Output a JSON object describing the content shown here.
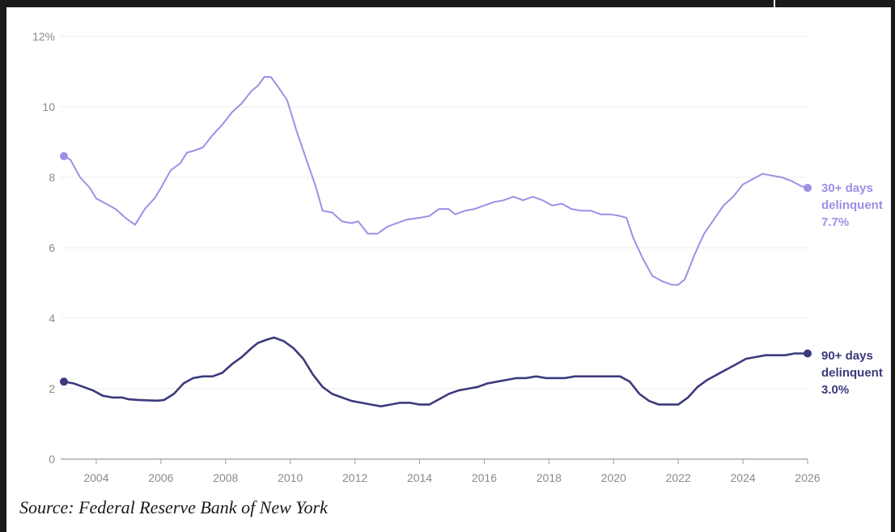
{
  "source": "Source: Federal Reserve Bank of New York",
  "chart_data": {
    "type": "line",
    "title": "",
    "xlabel": "",
    "ylabel": "",
    "xlim": [
      2002.9,
      2026
    ],
    "ylim": [
      0,
      12
    ],
    "y_ticks": [
      "0",
      "2",
      "4",
      "6",
      "8",
      "10",
      "12%"
    ],
    "x_ticks": [
      "2004",
      "2006",
      "2008",
      "2010",
      "2012",
      "2014",
      "2016",
      "2018",
      "2020",
      "2022",
      "2024",
      "2026"
    ],
    "grid": "horizontal",
    "series": [
      {
        "name": "30+ days delinquent",
        "label_lines": [
          "30+ days",
          "delinquent",
          "7.7%"
        ],
        "color": "#9c90e6",
        "points": [
          [
            2003.0,
            8.6
          ],
          [
            2003.2,
            8.5
          ],
          [
            2003.5,
            8.0
          ],
          [
            2003.8,
            7.7
          ],
          [
            2004.0,
            7.4
          ],
          [
            2004.3,
            7.25
          ],
          [
            2004.6,
            7.1
          ],
          [
            2004.9,
            6.85
          ],
          [
            2005.2,
            6.65
          ],
          [
            2005.5,
            7.1
          ],
          [
            2005.8,
            7.4
          ],
          [
            2006.0,
            7.7
          ],
          [
            2006.3,
            8.2
          ],
          [
            2006.6,
            8.4
          ],
          [
            2006.8,
            8.7
          ],
          [
            2007.0,
            8.75
          ],
          [
            2007.3,
            8.85
          ],
          [
            2007.6,
            9.2
          ],
          [
            2007.9,
            9.5
          ],
          [
            2008.2,
            9.85
          ],
          [
            2008.5,
            10.1
          ],
          [
            2008.8,
            10.45
          ],
          [
            2009.0,
            10.6
          ],
          [
            2009.2,
            10.85
          ],
          [
            2009.4,
            10.85
          ],
          [
            2009.6,
            10.6
          ],
          [
            2009.9,
            10.2
          ],
          [
            2010.2,
            9.3
          ],
          [
            2010.5,
            8.5
          ],
          [
            2010.8,
            7.7
          ],
          [
            2011.0,
            7.05
          ],
          [
            2011.3,
            7.0
          ],
          [
            2011.6,
            6.75
          ],
          [
            2011.9,
            6.7
          ],
          [
            2012.1,
            6.75
          ],
          [
            2012.4,
            6.4
          ],
          [
            2012.7,
            6.4
          ],
          [
            2013.0,
            6.6
          ],
          [
            2013.3,
            6.7
          ],
          [
            2013.6,
            6.8
          ],
          [
            2014.0,
            6.85
          ],
          [
            2014.3,
            6.9
          ],
          [
            2014.6,
            7.1
          ],
          [
            2014.9,
            7.1
          ],
          [
            2015.1,
            6.95
          ],
          [
            2015.4,
            7.05
          ],
          [
            2015.7,
            7.1
          ],
          [
            2016.0,
            7.2
          ],
          [
            2016.3,
            7.3
          ],
          [
            2016.6,
            7.35
          ],
          [
            2016.9,
            7.45
          ],
          [
            2017.2,
            7.35
          ],
          [
            2017.5,
            7.45
          ],
          [
            2017.8,
            7.35
          ],
          [
            2018.1,
            7.2
          ],
          [
            2018.4,
            7.25
          ],
          [
            2018.7,
            7.1
          ],
          [
            2019.0,
            7.05
          ],
          [
            2019.3,
            7.05
          ],
          [
            2019.6,
            6.95
          ],
          [
            2019.9,
            6.95
          ],
          [
            2020.2,
            6.9
          ],
          [
            2020.4,
            6.85
          ],
          [
            2020.6,
            6.3
          ],
          [
            2020.9,
            5.7
          ],
          [
            2021.2,
            5.2
          ],
          [
            2021.5,
            5.05
          ],
          [
            2021.8,
            4.95
          ],
          [
            2022.0,
            4.95
          ],
          [
            2022.2,
            5.1
          ],
          [
            2022.5,
            5.8
          ],
          [
            2022.8,
            6.4
          ],
          [
            2023.1,
            6.8
          ],
          [
            2023.4,
            7.2
          ],
          [
            2023.7,
            7.45
          ],
          [
            2024.0,
            7.8
          ],
          [
            2024.3,
            7.95
          ],
          [
            2024.6,
            8.1
          ],
          [
            2024.9,
            8.05
          ],
          [
            2025.2,
            8.0
          ],
          [
            2025.5,
            7.9
          ],
          [
            2025.8,
            7.75
          ],
          [
            2026.0,
            7.7
          ]
        ]
      },
      {
        "name": "90+ days delinquent",
        "label_lines": [
          "90+ days",
          "delinquent",
          "3.0%"
        ],
        "color": "#3b3a7c",
        "points": [
          [
            2003.0,
            2.2
          ],
          [
            2003.3,
            2.15
          ],
          [
            2003.6,
            2.05
          ],
          [
            2003.9,
            1.95
          ],
          [
            2004.2,
            1.8
          ],
          [
            2004.5,
            1.75
          ],
          [
            2004.8,
            1.75
          ],
          [
            2005.0,
            1.7
          ],
          [
            2005.3,
            1.68
          ],
          [
            2005.6,
            1.67
          ],
          [
            2005.9,
            1.66
          ],
          [
            2006.1,
            1.68
          ],
          [
            2006.4,
            1.85
          ],
          [
            2006.7,
            2.15
          ],
          [
            2007.0,
            2.3
          ],
          [
            2007.3,
            2.35
          ],
          [
            2007.6,
            2.35
          ],
          [
            2007.9,
            2.45
          ],
          [
            2008.2,
            2.7
          ],
          [
            2008.5,
            2.9
          ],
          [
            2008.8,
            3.15
          ],
          [
            2009.0,
            3.3
          ],
          [
            2009.3,
            3.4
          ],
          [
            2009.5,
            3.45
          ],
          [
            2009.8,
            3.35
          ],
          [
            2010.1,
            3.15
          ],
          [
            2010.4,
            2.85
          ],
          [
            2010.7,
            2.4
          ],
          [
            2011.0,
            2.05
          ],
          [
            2011.3,
            1.85
          ],
          [
            2011.6,
            1.75
          ],
          [
            2011.9,
            1.65
          ],
          [
            2012.2,
            1.6
          ],
          [
            2012.5,
            1.55
          ],
          [
            2012.8,
            1.5
          ],
          [
            2013.1,
            1.55
          ],
          [
            2013.4,
            1.6
          ],
          [
            2013.7,
            1.6
          ],
          [
            2014.0,
            1.55
          ],
          [
            2014.3,
            1.55
          ],
          [
            2014.6,
            1.7
          ],
          [
            2014.9,
            1.85
          ],
          [
            2015.2,
            1.95
          ],
          [
            2015.5,
            2.0
          ],
          [
            2015.8,
            2.05
          ],
          [
            2016.1,
            2.15
          ],
          [
            2016.4,
            2.2
          ],
          [
            2016.7,
            2.25
          ],
          [
            2017.0,
            2.3
          ],
          [
            2017.3,
            2.3
          ],
          [
            2017.6,
            2.35
          ],
          [
            2017.9,
            2.3
          ],
          [
            2018.2,
            2.3
          ],
          [
            2018.5,
            2.3
          ],
          [
            2018.8,
            2.35
          ],
          [
            2019.1,
            2.35
          ],
          [
            2019.4,
            2.35
          ],
          [
            2019.7,
            2.35
          ],
          [
            2020.0,
            2.35
          ],
          [
            2020.2,
            2.35
          ],
          [
            2020.5,
            2.2
          ],
          [
            2020.8,
            1.85
          ],
          [
            2021.1,
            1.65
          ],
          [
            2021.4,
            1.55
          ],
          [
            2021.7,
            1.55
          ],
          [
            2022.0,
            1.55
          ],
          [
            2022.3,
            1.75
          ],
          [
            2022.6,
            2.05
          ],
          [
            2022.9,
            2.25
          ],
          [
            2023.2,
            2.4
          ],
          [
            2023.5,
            2.55
          ],
          [
            2023.8,
            2.7
          ],
          [
            2024.1,
            2.85
          ],
          [
            2024.4,
            2.9
          ],
          [
            2024.7,
            2.95
          ],
          [
            2025.0,
            2.95
          ],
          [
            2025.3,
            2.95
          ],
          [
            2025.6,
            3.0
          ],
          [
            2026.0,
            3.0
          ]
        ]
      }
    ]
  }
}
